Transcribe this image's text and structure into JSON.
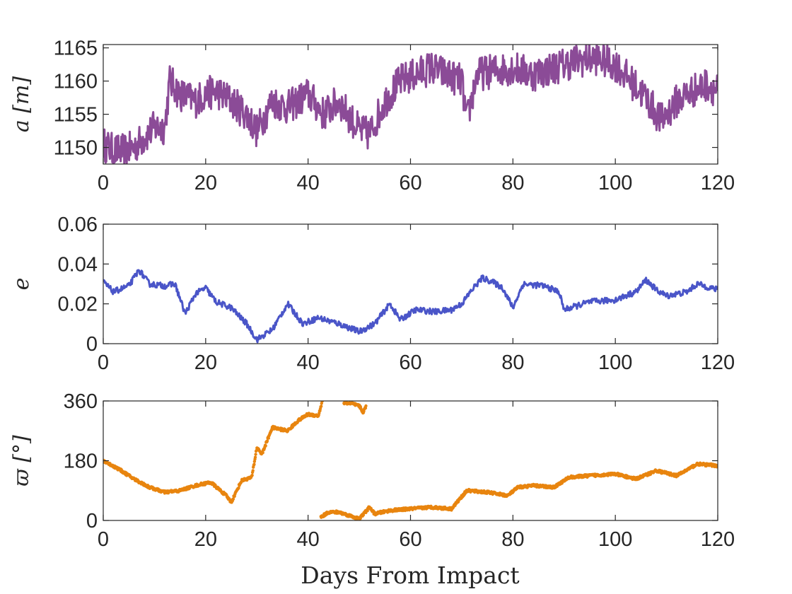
{
  "figure": {
    "xlabel": "Days From Impact"
  },
  "chart_data": [
    {
      "type": "line",
      "ylabel": "a [m]",
      "color": "#8b4b97",
      "xlim": [
        0,
        120
      ],
      "ylim": [
        1147.5,
        1165.5
      ],
      "xticks": [
        0,
        20,
        40,
        60,
        80,
        100,
        120
      ],
      "yticks": [
        1150,
        1155,
        1160,
        1165
      ],
      "noise": 2.6,
      "x": [
        0,
        2,
        4,
        6,
        8,
        10,
        12,
        13,
        15,
        18,
        20,
        22,
        25,
        28,
        30,
        33,
        36,
        40,
        43,
        46,
        50,
        52,
        55,
        58,
        61,
        64,
        67,
        70,
        71,
        73,
        76,
        80,
        84,
        88,
        92,
        96,
        100,
        103,
        106,
        109,
        112,
        115,
        118,
        120
      ],
      "y": [
        1150.5,
        1149.5,
        1149.5,
        1150,
        1151.5,
        1153,
        1153,
        1160,
        1158,
        1157,
        1158,
        1158.5,
        1157,
        1155,
        1152.5,
        1157,
        1156,
        1158,
        1155,
        1157,
        1152.5,
        1152,
        1157,
        1160,
        1161,
        1162,
        1161,
        1160,
        1154,
        1161,
        1161.5,
        1162,
        1161,
        1162,
        1163,
        1163.5,
        1162.5,
        1160,
        1157.5,
        1154,
        1157,
        1158.5,
        1159.5,
        1158.5
      ]
    },
    {
      "type": "line",
      "ylabel": "e",
      "color": "#4a55c8",
      "xlim": [
        0,
        120
      ],
      "ylim": [
        0,
        0.06
      ],
      "xticks": [
        0,
        20,
        40,
        60,
        80,
        100,
        120
      ],
      "yticks": [
        0,
        0.02,
        0.04,
        0.06
      ],
      "yticklabels": [
        "0",
        "0.02",
        "0.04",
        "0.06"
      ],
      "noise": 0.0015,
      "x": [
        0,
        2,
        5,
        7,
        9,
        12,
        14,
        16,
        18,
        20,
        22,
        25,
        28,
        30,
        33,
        36,
        39,
        42,
        46,
        50,
        53,
        56,
        58,
        61,
        65,
        68,
        70,
        72,
        74,
        76,
        78,
        80,
        82,
        86,
        89,
        90,
        95,
        100,
        104,
        106,
        108,
        110,
        114,
        116,
        120
      ],
      "y": [
        0.031,
        0.026,
        0.029,
        0.037,
        0.03,
        0.029,
        0.03,
        0.015,
        0.025,
        0.028,
        0.021,
        0.018,
        0.01,
        0.002,
        0.007,
        0.02,
        0.01,
        0.013,
        0.01,
        0.006,
        0.01,
        0.02,
        0.012,
        0.017,
        0.016,
        0.017,
        0.02,
        0.027,
        0.033,
        0.031,
        0.028,
        0.018,
        0.03,
        0.029,
        0.026,
        0.017,
        0.021,
        0.022,
        0.026,
        0.032,
        0.027,
        0.024,
        0.026,
        0.03,
        0.027
      ]
    },
    {
      "type": "scatter",
      "ylabel": "ϖ [°]",
      "color": "#e8850f",
      "xlim": [
        0,
        120
      ],
      "ylim": [
        0,
        360
      ],
      "xticks": [
        0,
        20,
        40,
        60,
        80,
        100,
        120
      ],
      "yticks": [
        0,
        180,
        360
      ],
      "noise": 4,
      "segments": [
        {
          "x": [
            0,
            3,
            6,
            9,
            12,
            15,
            18,
            21,
            24,
            25,
            27,
            29,
            30,
            31,
            33,
            36,
            38,
            40,
            42,
            42.8
          ],
          "y": [
            180,
            155,
            125,
            100,
            85,
            90,
            105,
            115,
            75,
            55,
            120,
            130,
            220,
            200,
            280,
            270,
            300,
            320,
            315,
            360
          ]
        },
        {
          "x": [
            47,
            48.5,
            50,
            50.8,
            51.3
          ],
          "y": [
            355,
            352,
            345,
            325,
            345
          ]
        },
        {
          "x": [
            42.5,
            44,
            46,
            48,
            50,
            52,
            53,
            56,
            60,
            64,
            68,
            71,
            75,
            79,
            81,
            84,
            88,
            91,
            95,
            100,
            104,
            108,
            112,
            116,
            120
          ],
          "y": [
            10,
            25,
            25,
            15,
            5,
            40,
            20,
            30,
            35,
            40,
            35,
            90,
            85,
            75,
            100,
            105,
            100,
            130,
            135,
            140,
            125,
            150,
            135,
            170,
            165
          ]
        }
      ]
    }
  ]
}
